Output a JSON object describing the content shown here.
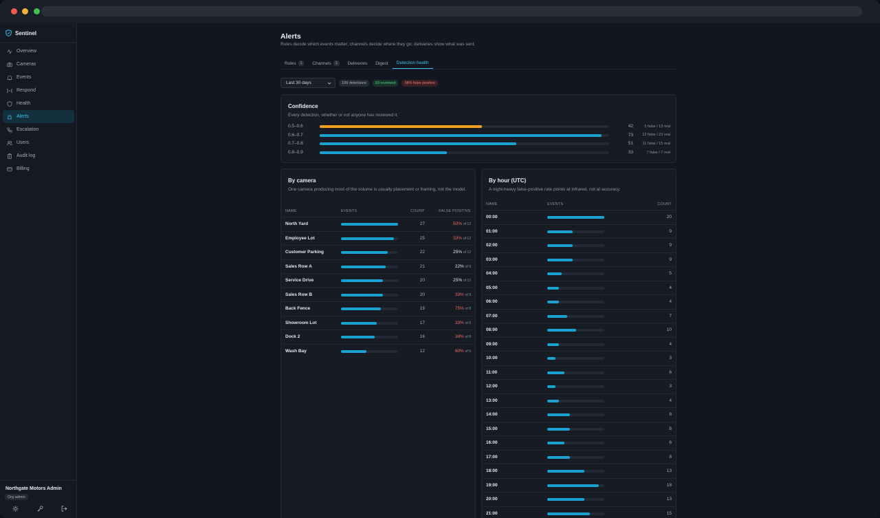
{
  "app": {
    "name": "Sentinel"
  },
  "colors": {
    "accent": "#3cc1ea",
    "bar": "#1aa2cf",
    "warn_bar": "#f2a11d",
    "danger": "#ef6b62"
  },
  "sidebar": {
    "items": [
      {
        "label": "Overview",
        "icon": "activity-icon",
        "active": false
      },
      {
        "label": "Cameras",
        "icon": "camera-icon",
        "active": false
      },
      {
        "label": "Events",
        "icon": "bell-icon",
        "active": false
      },
      {
        "label": "Respond",
        "icon": "radio-icon",
        "active": false
      },
      {
        "label": "Health",
        "icon": "shield-icon",
        "active": false
      },
      {
        "label": "Alerts",
        "icon": "siren-icon",
        "active": true
      },
      {
        "label": "Escalation",
        "icon": "phone-icon",
        "active": false
      },
      {
        "label": "Users",
        "icon": "users-icon",
        "active": false
      },
      {
        "label": "Audit log",
        "icon": "clipboard-icon",
        "active": false
      },
      {
        "label": "Billing",
        "icon": "credit-card-icon",
        "active": false
      }
    ],
    "org_name": "Northgate Motors Admin",
    "org_role": "Org admin"
  },
  "page": {
    "title": "Alerts",
    "subtitle": "Rules decide which events matter; channels decide where they go; deliveries show what was sent."
  },
  "tabs": [
    {
      "label": "Rules",
      "count": "1",
      "active": false
    },
    {
      "label": "Channels",
      "count": "1",
      "active": false
    },
    {
      "label": "Deliveries",
      "count": null,
      "active": false
    },
    {
      "label": "Digest",
      "count": null,
      "active": false
    },
    {
      "label": "Detection health",
      "count": null,
      "active": true
    }
  ],
  "filters": {
    "range": "Last 30 days",
    "detections": "199 detections",
    "reviewed": "93 reviewed",
    "false_positive": "38% false positive"
  },
  "confidence": {
    "title": "Confidence",
    "subtitle": "Every detection, whether or not anyone has reviewed it.",
    "rows": [
      {
        "label": "0.5–0.6",
        "count": 42,
        "fraction": "5 false / 13 real",
        "warn": true
      },
      {
        "label": "0.6–0.7",
        "count": 73,
        "fraction": "12 false / 23 real",
        "warn": false
      },
      {
        "label": "0.7–0.8",
        "count": 51,
        "fraction": "11 false / 15 real",
        "warn": false
      },
      {
        "label": "0.8–0.9",
        "count": 33,
        "fraction": "7 false / 7 real",
        "warn": false
      }
    ]
  },
  "by_camera": {
    "title": "By camera",
    "subtitle": "One camera producing most of the volume is usually placement or framing, not the model.",
    "headers": {
      "name": "NAME",
      "events": "EVENTS",
      "count": "COUNT",
      "fp": "FALSE POSITIVE"
    },
    "rows": [
      {
        "name": "North Yard",
        "count": 27,
        "fp": "50%",
        "of": "of 12",
        "bad": true
      },
      {
        "name": "Employee Lot",
        "count": 25,
        "fp": "33%",
        "of": "of 12",
        "bad": true
      },
      {
        "name": "Customer Parking",
        "count": 22,
        "fp": "25%",
        "of": "of 12",
        "bad": false
      },
      {
        "name": "Sales Row A",
        "count": 21,
        "fp": "22%",
        "of": "of 9",
        "bad": false
      },
      {
        "name": "Service Drive",
        "count": 20,
        "fp": "25%",
        "of": "of 12",
        "bad": false
      },
      {
        "name": "Sales Row B",
        "count": 20,
        "fp": "33%",
        "of": "of 9",
        "bad": true
      },
      {
        "name": "Back Fence",
        "count": 19,
        "fp": "75%",
        "of": "of 8",
        "bad": true
      },
      {
        "name": "Showroom Lot",
        "count": 17,
        "fp": "33%",
        "of": "of 6",
        "bad": true
      },
      {
        "name": "Dock 2",
        "count": 16,
        "fp": "38%",
        "of": "of 8",
        "bad": true
      },
      {
        "name": "Wash Bay",
        "count": 12,
        "fp": "60%",
        "of": "of 5",
        "bad": true
      }
    ]
  },
  "by_hour": {
    "title": "By hour (UTC)",
    "subtitle": "A night-heavy false-positive rate points at infrared, not at accuracy.",
    "headers": {
      "name": "NAME",
      "events": "EVENTS",
      "count": "COUNT"
    },
    "rows": [
      {
        "hour": "00:00",
        "count": 20
      },
      {
        "hour": "01:00",
        "count": 9
      },
      {
        "hour": "02:00",
        "count": 9
      },
      {
        "hour": "03:00",
        "count": 9
      },
      {
        "hour": "04:00",
        "count": 5
      },
      {
        "hour": "05:00",
        "count": 4
      },
      {
        "hour": "06:00",
        "count": 4
      },
      {
        "hour": "07:00",
        "count": 7
      },
      {
        "hour": "08:00",
        "count": 10
      },
      {
        "hour": "09:00",
        "count": 4
      },
      {
        "hour": "10:00",
        "count": 3
      },
      {
        "hour": "11:00",
        "count": 6
      },
      {
        "hour": "12:00",
        "count": 3
      },
      {
        "hour": "13:00",
        "count": 4
      },
      {
        "hour": "14:00",
        "count": 8
      },
      {
        "hour": "15:00",
        "count": 8
      },
      {
        "hour": "16:00",
        "count": 6
      },
      {
        "hour": "17:00",
        "count": 8
      },
      {
        "hour": "18:00",
        "count": 13
      },
      {
        "hour": "19:00",
        "count": 18
      },
      {
        "hour": "20:00",
        "count": 13
      },
      {
        "hour": "21:00",
        "count": 15
      }
    ]
  }
}
